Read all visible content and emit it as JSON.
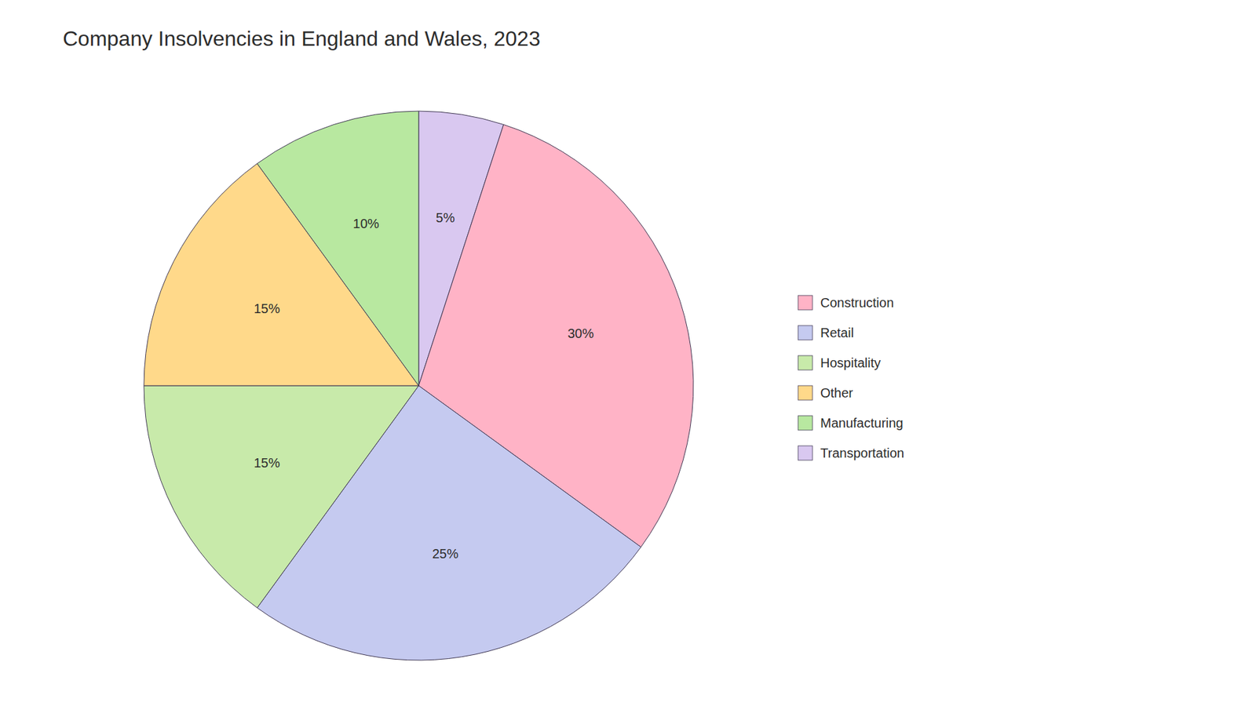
{
  "chart_data": {
    "type": "pie",
    "title": "Company Insolvencies in England and Wales, 2023",
    "categories": [
      "Transportation",
      "Construction",
      "Retail",
      "Hospitality",
      "Other",
      "Manufacturing"
    ],
    "values": [
      5,
      30,
      25,
      15,
      15,
      10
    ],
    "value_labels": [
      "5%",
      "30%",
      "25%",
      "15%",
      "15%",
      "10%"
    ],
    "colors": [
      "#D9C8F0",
      "#FFB3C6",
      "#C5CAF0",
      "#C8EAAA",
      "#FFD98A",
      "#B8E8A0"
    ],
    "legend_labels": [
      "Construction",
      "Retail",
      "Hospitality",
      "Other",
      "Manufacturing",
      "Transportation"
    ],
    "data_labels": true,
    "legend": "right"
  }
}
